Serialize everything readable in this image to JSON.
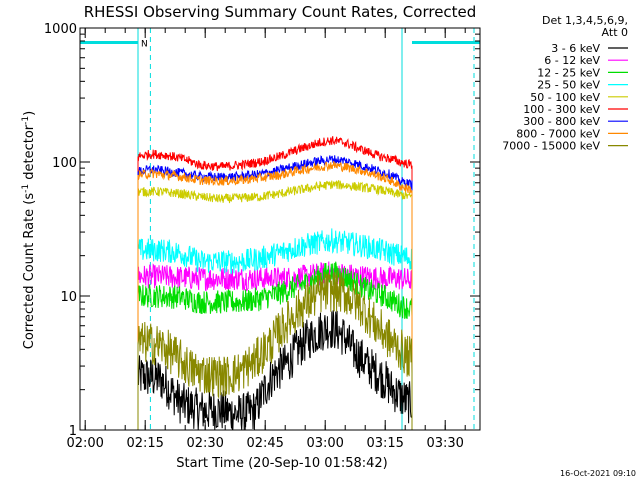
{
  "chart_data": {
    "type": "line",
    "title": "RHESSI Observing Summary Count Rates, Corrected",
    "xlabel": "Start Time (20-Sep-10 01:58:42)",
    "ylabel_main": "Corrected Count Rate (s",
    "ylabel_sup1": "-1",
    "ylabel_mid": " detector",
    "ylabel_sup2": "-1",
    "ylabel_end": ")",
    "x_start_time": "01:58:42",
    "xlim_minutes": [
      0,
      100
    ],
    "y_scale": "log",
    "ylim": [
      1,
      1000
    ],
    "xticks": [
      {
        "label": "02:00",
        "t": 1.3
      },
      {
        "label": "02:15",
        "t": 16.3
      },
      {
        "label": "02:30",
        "t": 31.3
      },
      {
        "label": "02:45",
        "t": 46.3
      },
      {
        "label": "03:00",
        "t": 61.3
      },
      {
        "label": "03:15",
        "t": 76.3
      },
      {
        "label": "03:30",
        "t": 91.3
      }
    ],
    "yticks": [
      {
        "label": "1",
        "v": 1
      },
      {
        "label": "10",
        "v": 10
      },
      {
        "label": "100",
        "v": 100
      },
      {
        "label": "1000",
        "v": 1000
      }
    ],
    "legend_header": [
      "Det 1,3,4,5,6,9,",
      "Att 0"
    ],
    "legend_position": "outside-right",
    "data_interval_minutes": [
      14.5,
      83.0
    ],
    "series": [
      {
        "name": "3 - 6 keV",
        "color": "#000000",
        "t": [
          14.5,
          16,
          20,
          25,
          30,
          35,
          40,
          44,
          48,
          52,
          56,
          60,
          62,
          64,
          66,
          68,
          72,
          76,
          78,
          80,
          82,
          83
        ],
        "values": [
          2.5,
          2.5,
          2.4,
          1.6,
          1.4,
          1.4,
          1.3,
          1.4,
          2.5,
          3.2,
          4.5,
          5.5,
          5.8,
          5.6,
          5.0,
          4.0,
          3.0,
          2.4,
          2.0,
          1.8,
          1.6,
          1.6
        ]
      },
      {
        "name": "6 - 12 keV",
        "color": "#ff00ff",
        "t": [
          14.5,
          20,
          30,
          40,
          50,
          55,
          60,
          63,
          66,
          70,
          76,
          80,
          83
        ],
        "values": [
          14,
          14,
          13.5,
          13.5,
          13.5,
          13.8,
          14.5,
          15,
          14.5,
          14,
          13.5,
          13.5,
          13
        ]
      },
      {
        "name": "12 - 25 keV",
        "color": "#00dd00",
        "t": [
          14.5,
          20,
          25,
          30,
          35,
          40,
          45,
          50,
          55,
          58,
          61,
          63,
          65,
          68,
          72,
          76,
          80,
          83
        ],
        "values": [
          10,
          10,
          9.8,
          9,
          9,
          9,
          9.5,
          10.5,
          12,
          13,
          14.5,
          15,
          14.5,
          13,
          11,
          10,
          8.5,
          8
        ]
      },
      {
        "name": "25 - 50 keV",
        "color": "#00ffff",
        "t": [
          14.5,
          20,
          25,
          30,
          35,
          40,
          45,
          50,
          55,
          60,
          63,
          66,
          70,
          75,
          80,
          83
        ],
        "values": [
          22,
          22,
          21,
          18,
          18,
          18,
          19,
          21,
          23.5,
          25,
          26,
          25,
          24,
          22,
          20,
          19
        ]
      },
      {
        "name": "50 - 100 keV",
        "color": "#cccc00",
        "t": [
          14.5,
          20,
          25,
          30,
          35,
          40,
          45,
          50,
          55,
          60,
          63,
          66,
          70,
          75,
          80,
          83
        ],
        "values": [
          60,
          60,
          58,
          55,
          53,
          54,
          55,
          58,
          62,
          66,
          68,
          67,
          65,
          62,
          57,
          55
        ]
      },
      {
        "name": "100 - 300 keV",
        "color": "#ff0000",
        "t": [
          14.5,
          18,
          22,
          26,
          30,
          35,
          40,
          45,
          50,
          55,
          60,
          63,
          66,
          70,
          75,
          78,
          80,
          83
        ],
        "values": [
          110,
          115,
          112,
          105,
          95,
          92,
          95,
          100,
          110,
          125,
          140,
          145,
          140,
          125,
          110,
          105,
          100,
          95
        ]
      },
      {
        "name": "300 - 800 keV",
        "color": "#0000ff",
        "t": [
          14.5,
          18,
          22,
          26,
          30,
          35,
          40,
          45,
          50,
          55,
          60,
          63,
          66,
          70,
          75,
          78,
          80,
          83
        ],
        "values": [
          85,
          88,
          85,
          82,
          78,
          77,
          78,
          81,
          87,
          95,
          102,
          105,
          102,
          95,
          85,
          80,
          72,
          68
        ]
      },
      {
        "name": "800 - 7000 keV",
        "color": "#ff8800",
        "t": [
          14.5,
          18,
          22,
          26,
          30,
          35,
          40,
          45,
          50,
          55,
          60,
          63,
          66,
          70,
          75,
          78,
          80,
          83
        ],
        "values": [
          80,
          82,
          80,
          77,
          73,
          72,
          73,
          76,
          80,
          87,
          92,
          95,
          92,
          87,
          78,
          72,
          66,
          62
        ]
      },
      {
        "name": "7000 - 15000 keV",
        "color": "#888800",
        "t": [
          14.5,
          16,
          20,
          24,
          28,
          32,
          36,
          40,
          44,
          48,
          52,
          56,
          60,
          63,
          66,
          70,
          74,
          78,
          82,
          83
        ],
        "values": [
          4.5,
          4.5,
          4.3,
          3.5,
          2.8,
          2.6,
          2.5,
          2.7,
          3.3,
          4.5,
          6.5,
          8.5,
          10.5,
          11,
          10.5,
          8.5,
          6,
          4.5,
          3.5,
          3.5
        ]
      }
    ],
    "saa_marker_label": "N",
    "saa_intervals_minutes": [
      [
        0,
        14.5
      ],
      [
        83.0,
        100
      ]
    ],
    "saa_level": 780,
    "vertical_lines_solid_minutes": [
      0,
      14.5,
      80.5
    ],
    "vertical_lines_dashed_minutes": [
      17.6,
      98.5
    ],
    "timestamp": "16-Oct-2021 09:10"
  }
}
